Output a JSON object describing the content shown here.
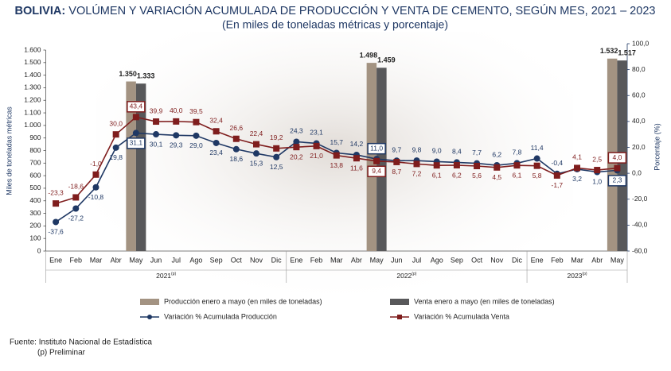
{
  "chart_data": {
    "type": "bar",
    "title_prefix": "BOLIVIA:",
    "title": "VOLÚMEN Y VARIACIÓN ACUMULADA DE PRODUCCIÓN Y VENTA DE CEMENTO, SEGÚN MES, 2021 – 2023",
    "subtitle": "(En miles de toneladas métricas y porcentaje)",
    "y_label": "Miles de toneladas métricas",
    "y2_label": "Porcentaje (%)",
    "categories": [
      "Ene",
      "Feb",
      "Mar",
      "Abr",
      "May",
      "Jun",
      "Jul",
      "Ago",
      "Sep",
      "Oct",
      "Nov",
      "Dic",
      "Ene",
      "Feb",
      "Mar",
      "Abr",
      "May",
      "Jun",
      "Jul",
      "Ago",
      "Sep",
      "Oct",
      "Nov",
      "Dic",
      "Ene",
      "Feb",
      "Mar",
      "Abr",
      "May"
    ],
    "group_labels": [
      "2021",
      "2022",
      "2023"
    ],
    "group_note": "(p)",
    "ylim": [
      0,
      1600
    ],
    "yticks": [
      0,
      100,
      200,
      300,
      400,
      500,
      600,
      700,
      800,
      900,
      {
        "value": 1000,
        "label": "1.000"
      },
      {
        "value": 1100,
        "label": "1.100"
      },
      {
        "value": 1200,
        "label": "1.200"
      },
      {
        "value": 1300,
        "label": "1.300"
      },
      {
        "value": 1400,
        "label": "1.400"
      },
      {
        "value": 1500,
        "label": "1.500"
      },
      {
        "value": 1600,
        "label": "1.600"
      }
    ],
    "y2lim": [
      -60,
      100
    ],
    "y2ticks": [
      {
        "value": -60,
        "label": "-60,0"
      },
      {
        "value": -40,
        "label": "-40,0"
      },
      {
        "value": -20,
        "label": "-20,0"
      },
      {
        "value": 0,
        "label": "0,0"
      },
      {
        "value": 20,
        "label": "20,0"
      },
      {
        "value": 40,
        "label": "40,0"
      },
      {
        "value": 60,
        "label": "60,0"
      },
      {
        "value": 80,
        "label": "80,0"
      },
      {
        "value": 100,
        "label": "100,0"
      }
    ],
    "series": [
      {
        "name": "Producción enero a mayo (en miles de toneladas)",
        "type": "bar",
        "color": "#a39382",
        "values": [
          null,
          null,
          null,
          null,
          1350,
          null,
          null,
          null,
          null,
          null,
          null,
          null,
          null,
          null,
          null,
          null,
          1498,
          null,
          null,
          null,
          null,
          null,
          null,
          null,
          null,
          null,
          null,
          null,
          1532
        ],
        "value_labels": [
          null,
          null,
          null,
          null,
          "1.350",
          null,
          null,
          null,
          null,
          null,
          null,
          null,
          null,
          null,
          null,
          null,
          "1.498",
          null,
          null,
          null,
          null,
          null,
          null,
          null,
          null,
          null,
          null,
          null,
          "1.532"
        ]
      },
      {
        "name": "Venta enero a mayo (en miles de toneladas)",
        "type": "bar",
        "color": "#58585a",
        "values": [
          null,
          null,
          null,
          null,
          1333,
          null,
          null,
          null,
          null,
          null,
          null,
          null,
          null,
          null,
          null,
          null,
          1459,
          null,
          null,
          null,
          null,
          null,
          null,
          null,
          null,
          null,
          null,
          null,
          1517
        ],
        "value_labels": [
          null,
          null,
          null,
          null,
          "1.333",
          null,
          null,
          null,
          null,
          null,
          null,
          null,
          null,
          null,
          null,
          null,
          "1.459",
          null,
          null,
          null,
          null,
          null,
          null,
          null,
          null,
          null,
          null,
          null,
          "1.517"
        ]
      },
      {
        "name": "Variación % Acumulada Producción",
        "type": "line",
        "axis": "y2",
        "color": "#1f3864",
        "marker": "circle",
        "values": [
          -37.6,
          -27.2,
          -10.8,
          19.8,
          31.1,
          30.1,
          29.3,
          29.0,
          23.4,
          18.6,
          15.3,
          12.5,
          24.3,
          23.1,
          15.7,
          14.2,
          11.0,
          9.7,
          9.8,
          9.0,
          8.4,
          7.7,
          6.2,
          7.8,
          11.4,
          -0.4,
          3.2,
          1.0,
          2.3
        ],
        "value_labels": [
          "-37,6",
          "-27,2",
          "-10,8",
          "19,8",
          "31,1",
          "30,1",
          "29,3",
          "29,0",
          "23,4",
          "18,6",
          "15,3",
          "12,5",
          "24,3",
          "23,1",
          "15,7",
          "14,2",
          "11,0",
          "9,7",
          "9,8",
          "9,0",
          "8,4",
          "7,7",
          "6,2",
          "7,8",
          "11,4",
          "-0,4",
          "3,2",
          "1,0",
          "2,3"
        ]
      },
      {
        "name": "Variación % Acumulada Venta",
        "type": "line",
        "axis": "y2",
        "color": "#7f1d1d",
        "marker": "square",
        "values": [
          -23.3,
          -18.6,
          -1.0,
          30.0,
          43.4,
          39.9,
          40.0,
          39.5,
          32.4,
          26.6,
          22.4,
          19.2,
          20.2,
          21.0,
          13.8,
          11.6,
          9.4,
          8.7,
          7.2,
          6.1,
          6.2,
          5.6,
          4.5,
          6.1,
          5.8,
          -1.7,
          4.1,
          2.5,
          4.0
        ],
        "value_labels": [
          "-23,3",
          "-18,6",
          "-1,0",
          "30,0",
          "43,4",
          "39,9",
          "40,0",
          "39,5",
          "32,4",
          "26,6",
          "22,4",
          "19,2",
          "20,2",
          "21,0",
          "13,8",
          "11,6",
          "9,4",
          "8,7",
          "7,2",
          "6,1",
          "6,2",
          "5,6",
          "4,5",
          "6,1",
          "5,8",
          "-1,7",
          "4,1",
          "2,5",
          "4,0"
        ]
      }
    ],
    "source": "Fuente: Instituto Nacional de Estadística",
    "note": "(p) Preliminar"
  }
}
